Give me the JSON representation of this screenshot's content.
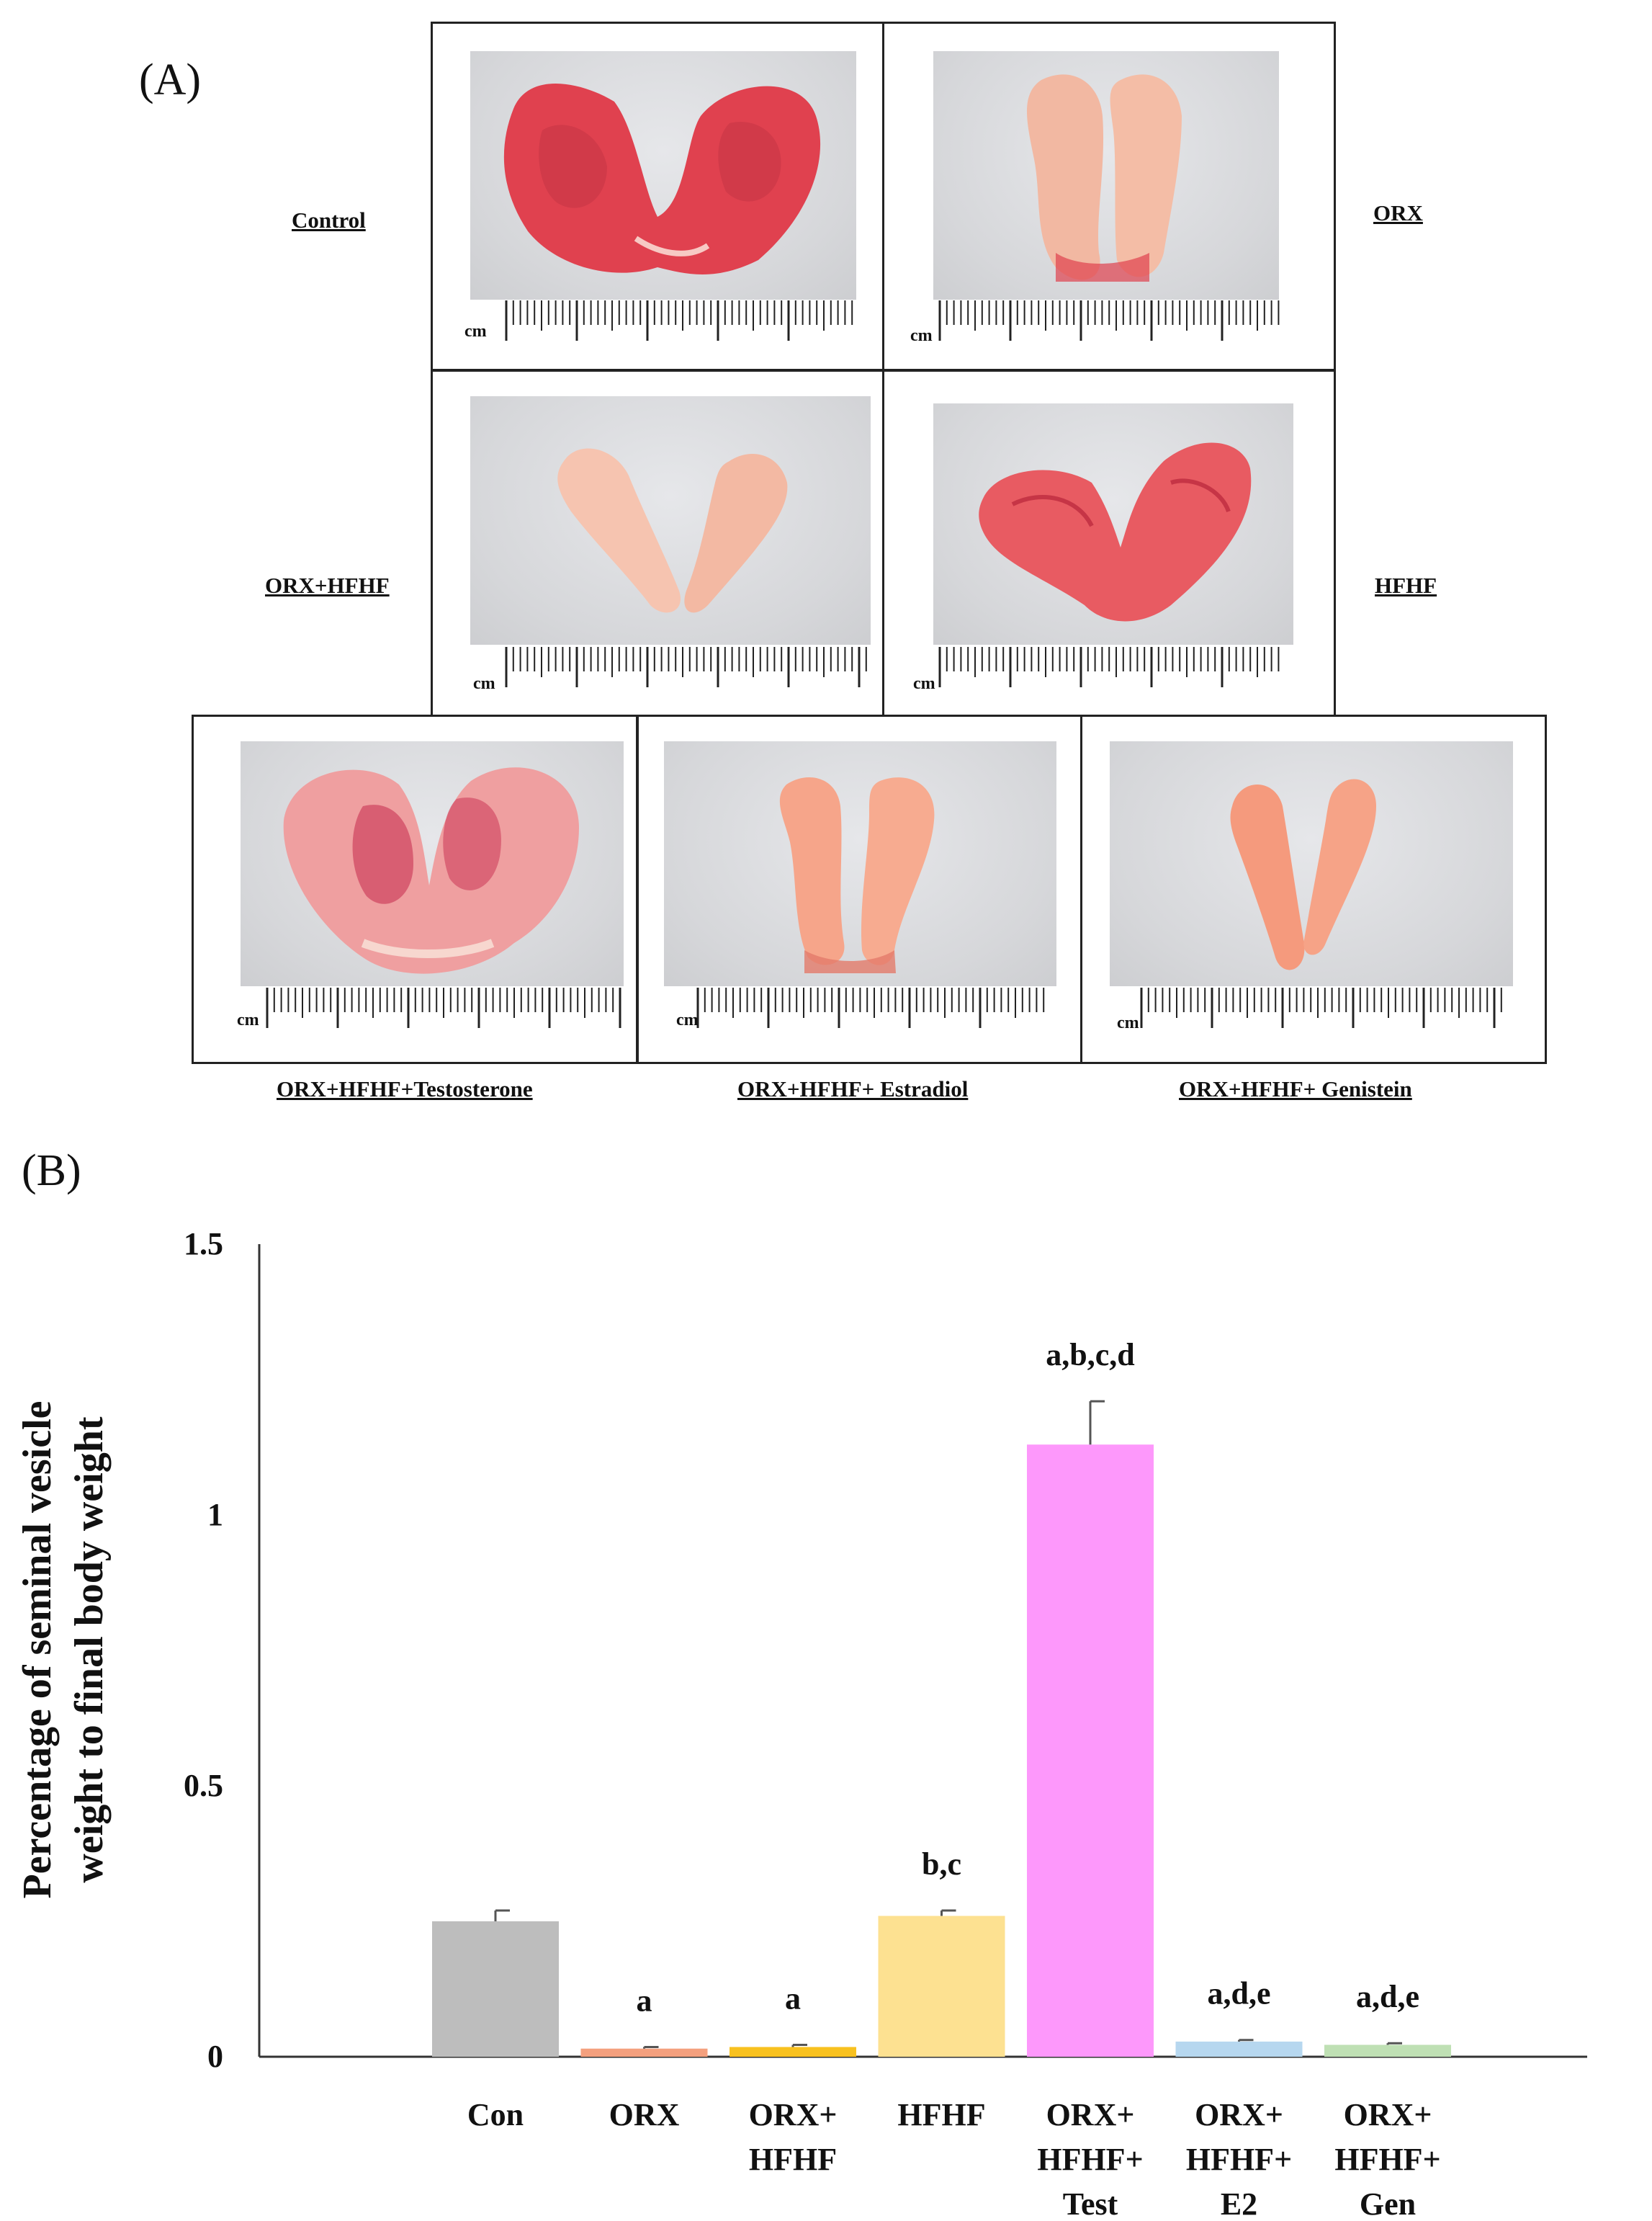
{
  "panel_a": {
    "letter": "(A)",
    "unit_label": "cm",
    "labels": {
      "control": "Control",
      "orx": "ORX",
      "orx_hfhf": "ORX+HFHF",
      "hfhf": "HFHF",
      "testosterone": "ORX+HFHF+Testosterone",
      "estradiol": "ORX+HFHF+ Estradiol",
      "genistein": "ORX+HFHF+ Genistein"
    },
    "colors": {
      "photo_bg": "#d9dadd",
      "tissue_red": "#e0414f",
      "tissue_pale": "#f2b8a2"
    }
  },
  "panel_b": {
    "letter": "(B)"
  },
  "chart_data": {
    "type": "bar",
    "title": "",
    "xlabel": "",
    "ylabel_lines": [
      "Percentage of seminal vesicle",
      "weight to final body weight"
    ],
    "ylim": [
      0,
      1.5
    ],
    "yticks": [
      "0",
      "0.5",
      "1",
      "1.5"
    ],
    "ytick_values": [
      0,
      0.5,
      1,
      1.5
    ],
    "grid": false,
    "categories": [
      {
        "lines": [
          "Con"
        ]
      },
      {
        "lines": [
          "ORX"
        ]
      },
      {
        "lines": [
          "ORX+",
          "HFHF"
        ]
      },
      {
        "lines": [
          "HFHF"
        ]
      },
      {
        "lines": [
          "ORX+",
          "HFHF+",
          "Test"
        ]
      },
      {
        "lines": [
          "ORX+",
          "HFHF+",
          "E2"
        ]
      },
      {
        "lines": [
          "ORX+",
          "HFHF+",
          "Gen"
        ]
      }
    ],
    "values": [
      0.25,
      0.015,
      0.018,
      0.26,
      1.13,
      0.028,
      0.022
    ],
    "errors": [
      0.02,
      0.003,
      0.004,
      0.01,
      0.08,
      0.003,
      0.003
    ],
    "significance": [
      "",
      "a",
      "a",
      "b,c",
      "a,b,c,d",
      "a,d,e",
      "a,d,e"
    ],
    "colors": [
      "#bdbdbd",
      "#f4a07e",
      "#f8c11f",
      "#fde191",
      "#fd98fb",
      "#b6d7ef",
      "#bfe0b4"
    ]
  }
}
